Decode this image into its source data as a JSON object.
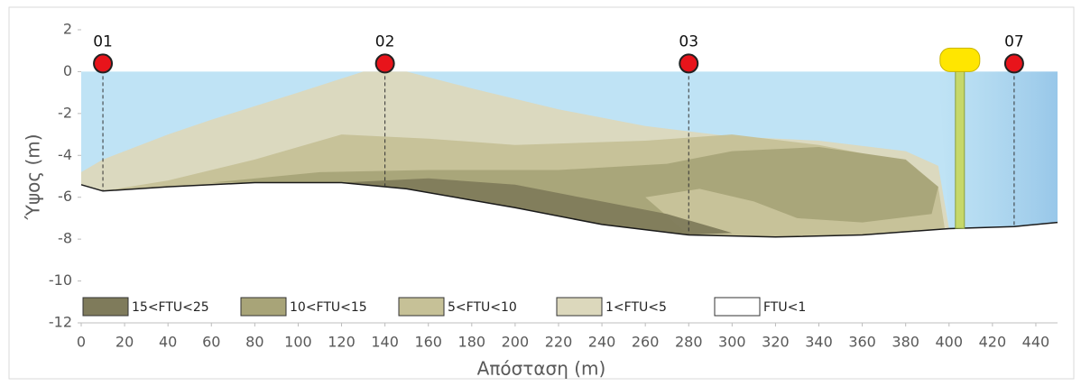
{
  "chart_data": {
    "type": "section",
    "xlabel": "Απόσταση (m)",
    "ylabel": "Ύψος (m)",
    "xlim": [
      0,
      450
    ],
    "xticks": [
      0,
      20,
      40,
      60,
      80,
      100,
      120,
      140,
      160,
      180,
      200,
      220,
      240,
      260,
      280,
      300,
      320,
      340,
      360,
      380,
      400,
      420,
      440
    ],
    "ylim": [
      -12,
      2
    ],
    "yticks": [
      -12,
      -10,
      -8,
      -6,
      -4,
      -2,
      0,
      2
    ],
    "water_color": "#bfe3f5",
    "bottom": {
      "x": [
        0,
        10,
        40,
        80,
        120,
        150,
        200,
        240,
        280,
        320,
        360,
        400,
        430,
        450
      ],
      "y": [
        -5.4,
        -5.7,
        -5.5,
        -5.3,
        -5.3,
        -5.6,
        -6.5,
        -7.3,
        -7.8,
        -7.9,
        -7.8,
        -7.5,
        -7.4,
        -7.2
      ]
    },
    "stations": {
      "labels": [
        "01",
        "02",
        "03",
        "07"
      ],
      "x": [
        10,
        140,
        280,
        430
      ],
      "y": [
        0,
        0,
        0,
        0
      ],
      "color": "#e8141b"
    },
    "buoy_x": 405,
    "series": [
      {
        "name": "15<FTU<25",
        "color": "#7f7b5b",
        "x": [
          120,
          160,
          200,
          240,
          270,
          300,
          280,
          240,
          200,
          150
        ],
        "y": [
          -5.3,
          -5.1,
          -5.4,
          -6.2,
          -6.8,
          -7.7,
          -7.8,
          -7.3,
          -6.5,
          -5.6
        ]
      },
      {
        "name": "10<FTU<15",
        "color": "#a8a478",
        "x": [
          60,
          110,
          160,
          220,
          270,
          300,
          340,
          380,
          395,
          392,
          360,
          330,
          310,
          285,
          260,
          280,
          240,
          200,
          150,
          120,
          80
        ],
        "y": [
          -5.3,
          -4.8,
          -4.7,
          -4.7,
          -4.4,
          -3.8,
          -3.6,
          -4.2,
          -5.5,
          -6.8,
          -7.2,
          -7.0,
          -6.2,
          -5.6,
          -6.0,
          -7.8,
          -7.3,
          -6.5,
          -5.6,
          -5.3,
          -5.3
        ]
      },
      {
        "name": "5<FTU<10",
        "color": "#c6c197",
        "x": [
          10,
          40,
          80,
          120,
          160,
          200,
          260,
          300,
          340,
          380,
          395,
          398,
          360,
          320,
          280,
          240,
          200,
          150,
          120,
          80,
          40
        ],
        "y": [
          -5.7,
          -5.2,
          -4.2,
          -3.0,
          -3.2,
          -3.5,
          -3.3,
          -3.0,
          -3.5,
          -4.3,
          -5.5,
          -7.5,
          -7.8,
          -7.9,
          -7.8,
          -7.3,
          -6.5,
          -5.6,
          -5.3,
          -5.3,
          -5.5
        ]
      },
      {
        "name": "1<FTU<5",
        "color": "#dcd8bc",
        "x": [
          0,
          10,
          40,
          60,
          100,
          130,
          150,
          180,
          220,
          260,
          300,
          340,
          380,
          395,
          400,
          360,
          320,
          280,
          240,
          200,
          150,
          120,
          80,
          40,
          10,
          0
        ],
        "y": [
          -4.8,
          -4.2,
          -3.0,
          -2.3,
          -1.0,
          0,
          0,
          -0.8,
          -1.8,
          -2.6,
          -3.1,
          -3.3,
          -3.8,
          -4.5,
          -7.5,
          -7.8,
          -7.9,
          -7.8,
          -7.3,
          -6.5,
          -5.6,
          -5.3,
          -5.3,
          -5.5,
          -5.7,
          -5.4
        ]
      },
      {
        "name": "FTU<1",
        "color": "#ffffff"
      }
    ]
  }
}
